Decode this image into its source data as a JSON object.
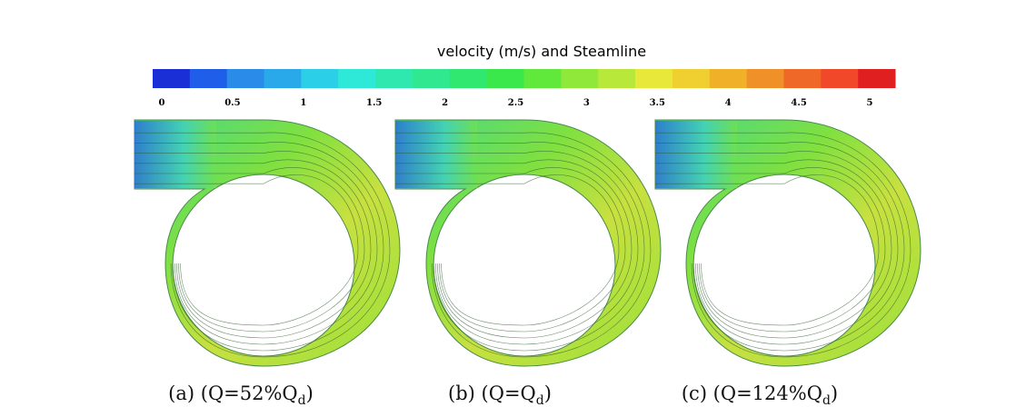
{
  "figure": {
    "colorbar": {
      "title": "velocity (m/s) and Steamline",
      "colors": [
        "#1a2fd6",
        "#1f5ee8",
        "#2a8be8",
        "#2aa9ea",
        "#2ccfe8",
        "#2ee8d8",
        "#2ee8b0",
        "#2fe890",
        "#30e870",
        "#3be84c",
        "#60e83a",
        "#8fe83a",
        "#b8e83a",
        "#e8e83a",
        "#f0d030",
        "#f0b028",
        "#f09028",
        "#f06828",
        "#f04828",
        "#e02020"
      ],
      "ticks": [
        0,
        0.5,
        1,
        1.5,
        2,
        2.5,
        3,
        3.5,
        4,
        4.5,
        5
      ]
    },
    "panels": [
      {
        "caption": "(a) (Q=52%Q",
        "caption_sub": "d",
        "caption_end": ")"
      },
      {
        "caption": "(b) (Q=Q",
        "caption_sub": "d",
        "caption_end": ")"
      },
      {
        "caption": "(c) (Q=124%Q",
        "caption_sub": "d",
        "caption_end": ")"
      }
    ]
  }
}
